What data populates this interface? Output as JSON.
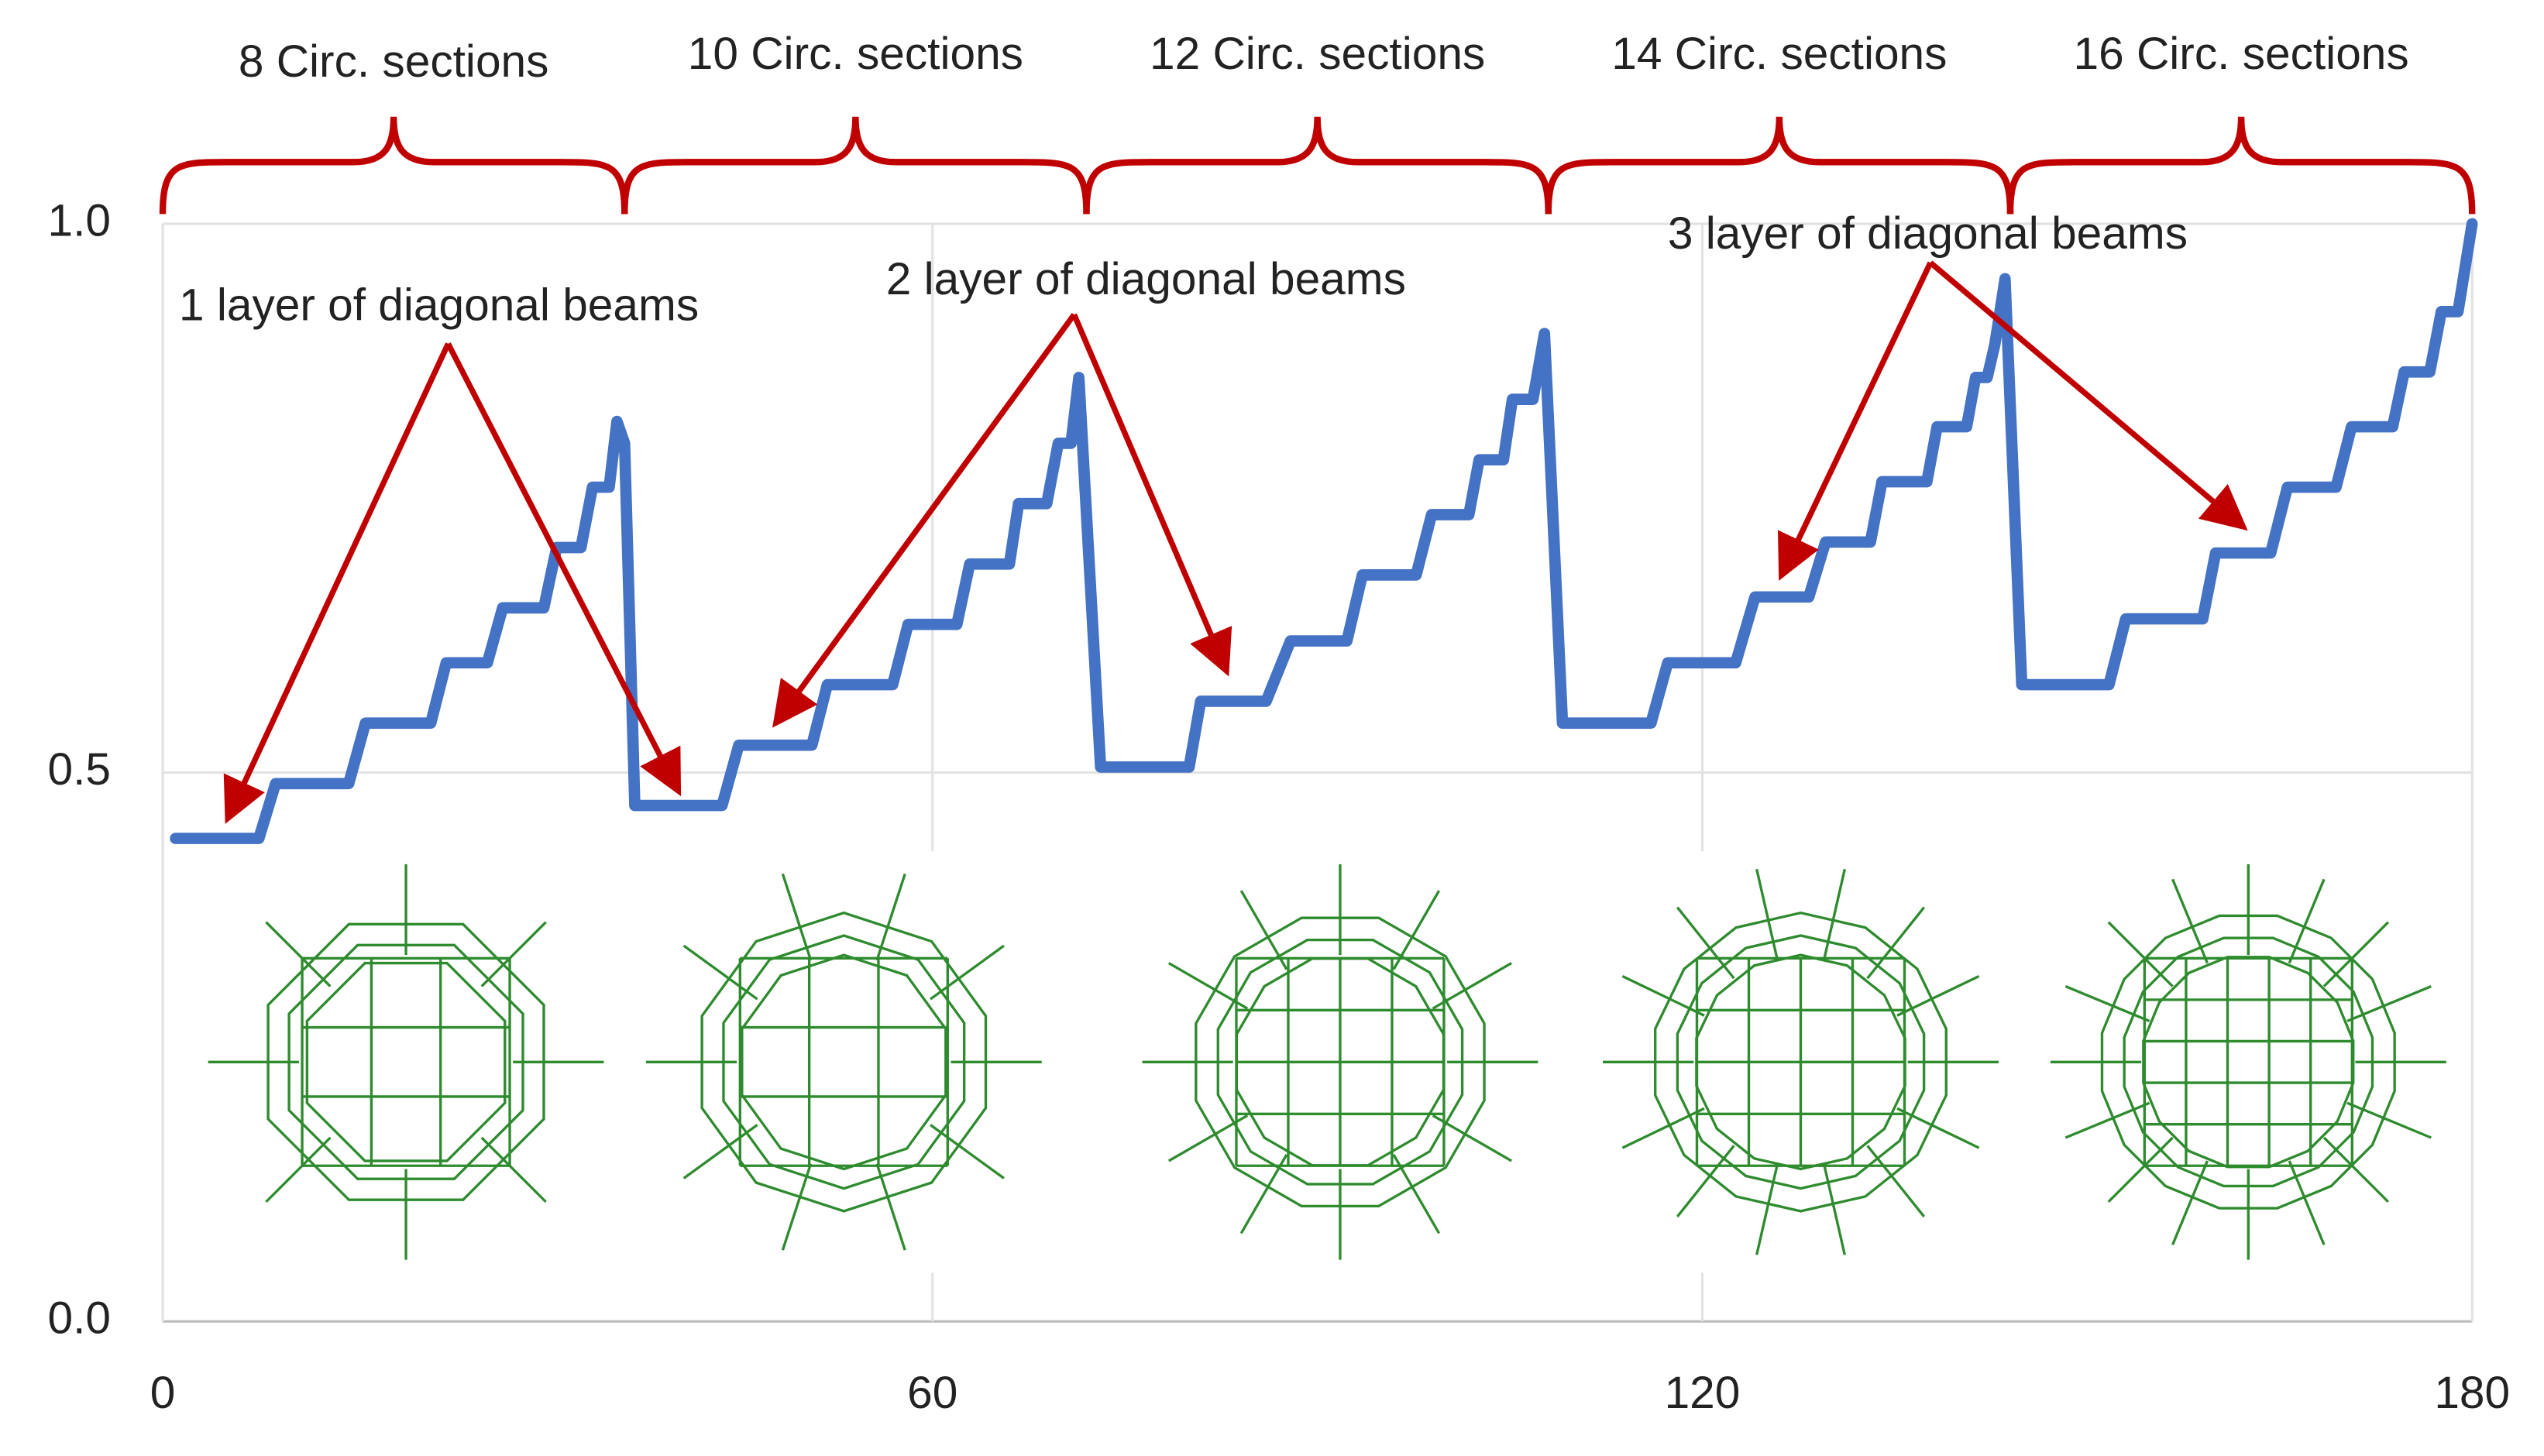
{
  "chart_data": {
    "type": "line",
    "x": [
      1,
      7.5,
      8.8,
      14.5,
      15.8,
      20.9,
      22.1,
      25.3,
      26.5,
      29.7,
      30.7,
      32.6,
      33.5,
      34.8,
      35.4,
      36,
      36.8,
      43.6,
      44.9,
      50.6,
      51.8,
      56.9,
      58.1,
      61.9,
      62.9,
      66,
      66.7,
      68.9,
      69.8,
      70.8,
      71.4,
      73.1,
      80,
      80.9,
      86,
      87.9,
      92.3,
      93.5,
      97.7,
      98.9,
      101.8,
      102.6,
      104.5,
      105.2,
      106.8,
      107.7,
      109.1,
      116,
      117.3,
      122.6,
      124.1,
      128.3,
      129.6,
      133.1,
      134,
      137.5,
      138.3,
      140.6,
      141.3,
      142.2,
      142.8,
      143.6,
      144.9,
      151.7,
      153,
      159,
      160,
      164.3,
      165.6,
      169.4,
      170.6,
      173.8,
      174.7,
      176.7,
      177.6,
      178.9,
      180
    ],
    "values": [
      0.44,
      0.44,
      0.49,
      0.49,
      0.545,
      0.545,
      0.6,
      0.6,
      0.65,
      0.65,
      0.705,
      0.705,
      0.76,
      0.76,
      0.82,
      0.8,
      0.47,
      0.47,
      0.525,
      0.525,
      0.58,
      0.58,
      0.635,
      0.635,
      0.69,
      0.69,
      0.745,
      0.745,
      0.8,
      0.8,
      0.86,
      0.505,
      0.505,
      0.565,
      0.565,
      0.62,
      0.62,
      0.68,
      0.68,
      0.735,
      0.735,
      0.785,
      0.785,
      0.84,
      0.84,
      0.9,
      0.545,
      0.545,
      0.6,
      0.6,
      0.66,
      0.66,
      0.71,
      0.71,
      0.765,
      0.765,
      0.815,
      0.815,
      0.86,
      0.86,
      0.89,
      0.95,
      0.58,
      0.58,
      0.64,
      0.64,
      0.7,
      0.7,
      0.76,
      0.76,
      0.815,
      0.815,
      0.865,
      0.865,
      0.92,
      0.92,
      1.0
    ],
    "color": "#4472c4",
    "xlim": [
      0,
      180
    ],
    "xticks": [
      0,
      60,
      120,
      180
    ],
    "ylim": [
      0,
      1
    ],
    "yticks": [
      {
        "value": 0,
        "label": "0.0"
      },
      {
        "value": 0.5,
        "label": "0.5"
      },
      {
        "value": 1,
        "label": "1.0"
      }
    ],
    "grid": true,
    "section_labels": [
      "8 Circ. sections",
      "10 Circ. sections",
      "12 Circ. sections",
      "14 Circ. sections",
      "16 Circ. sections"
    ],
    "annotations": [
      "1 layer of diagonal beams",
      "2 layer of diagonal beams",
      "3 layer of diagonal beams"
    ]
  }
}
